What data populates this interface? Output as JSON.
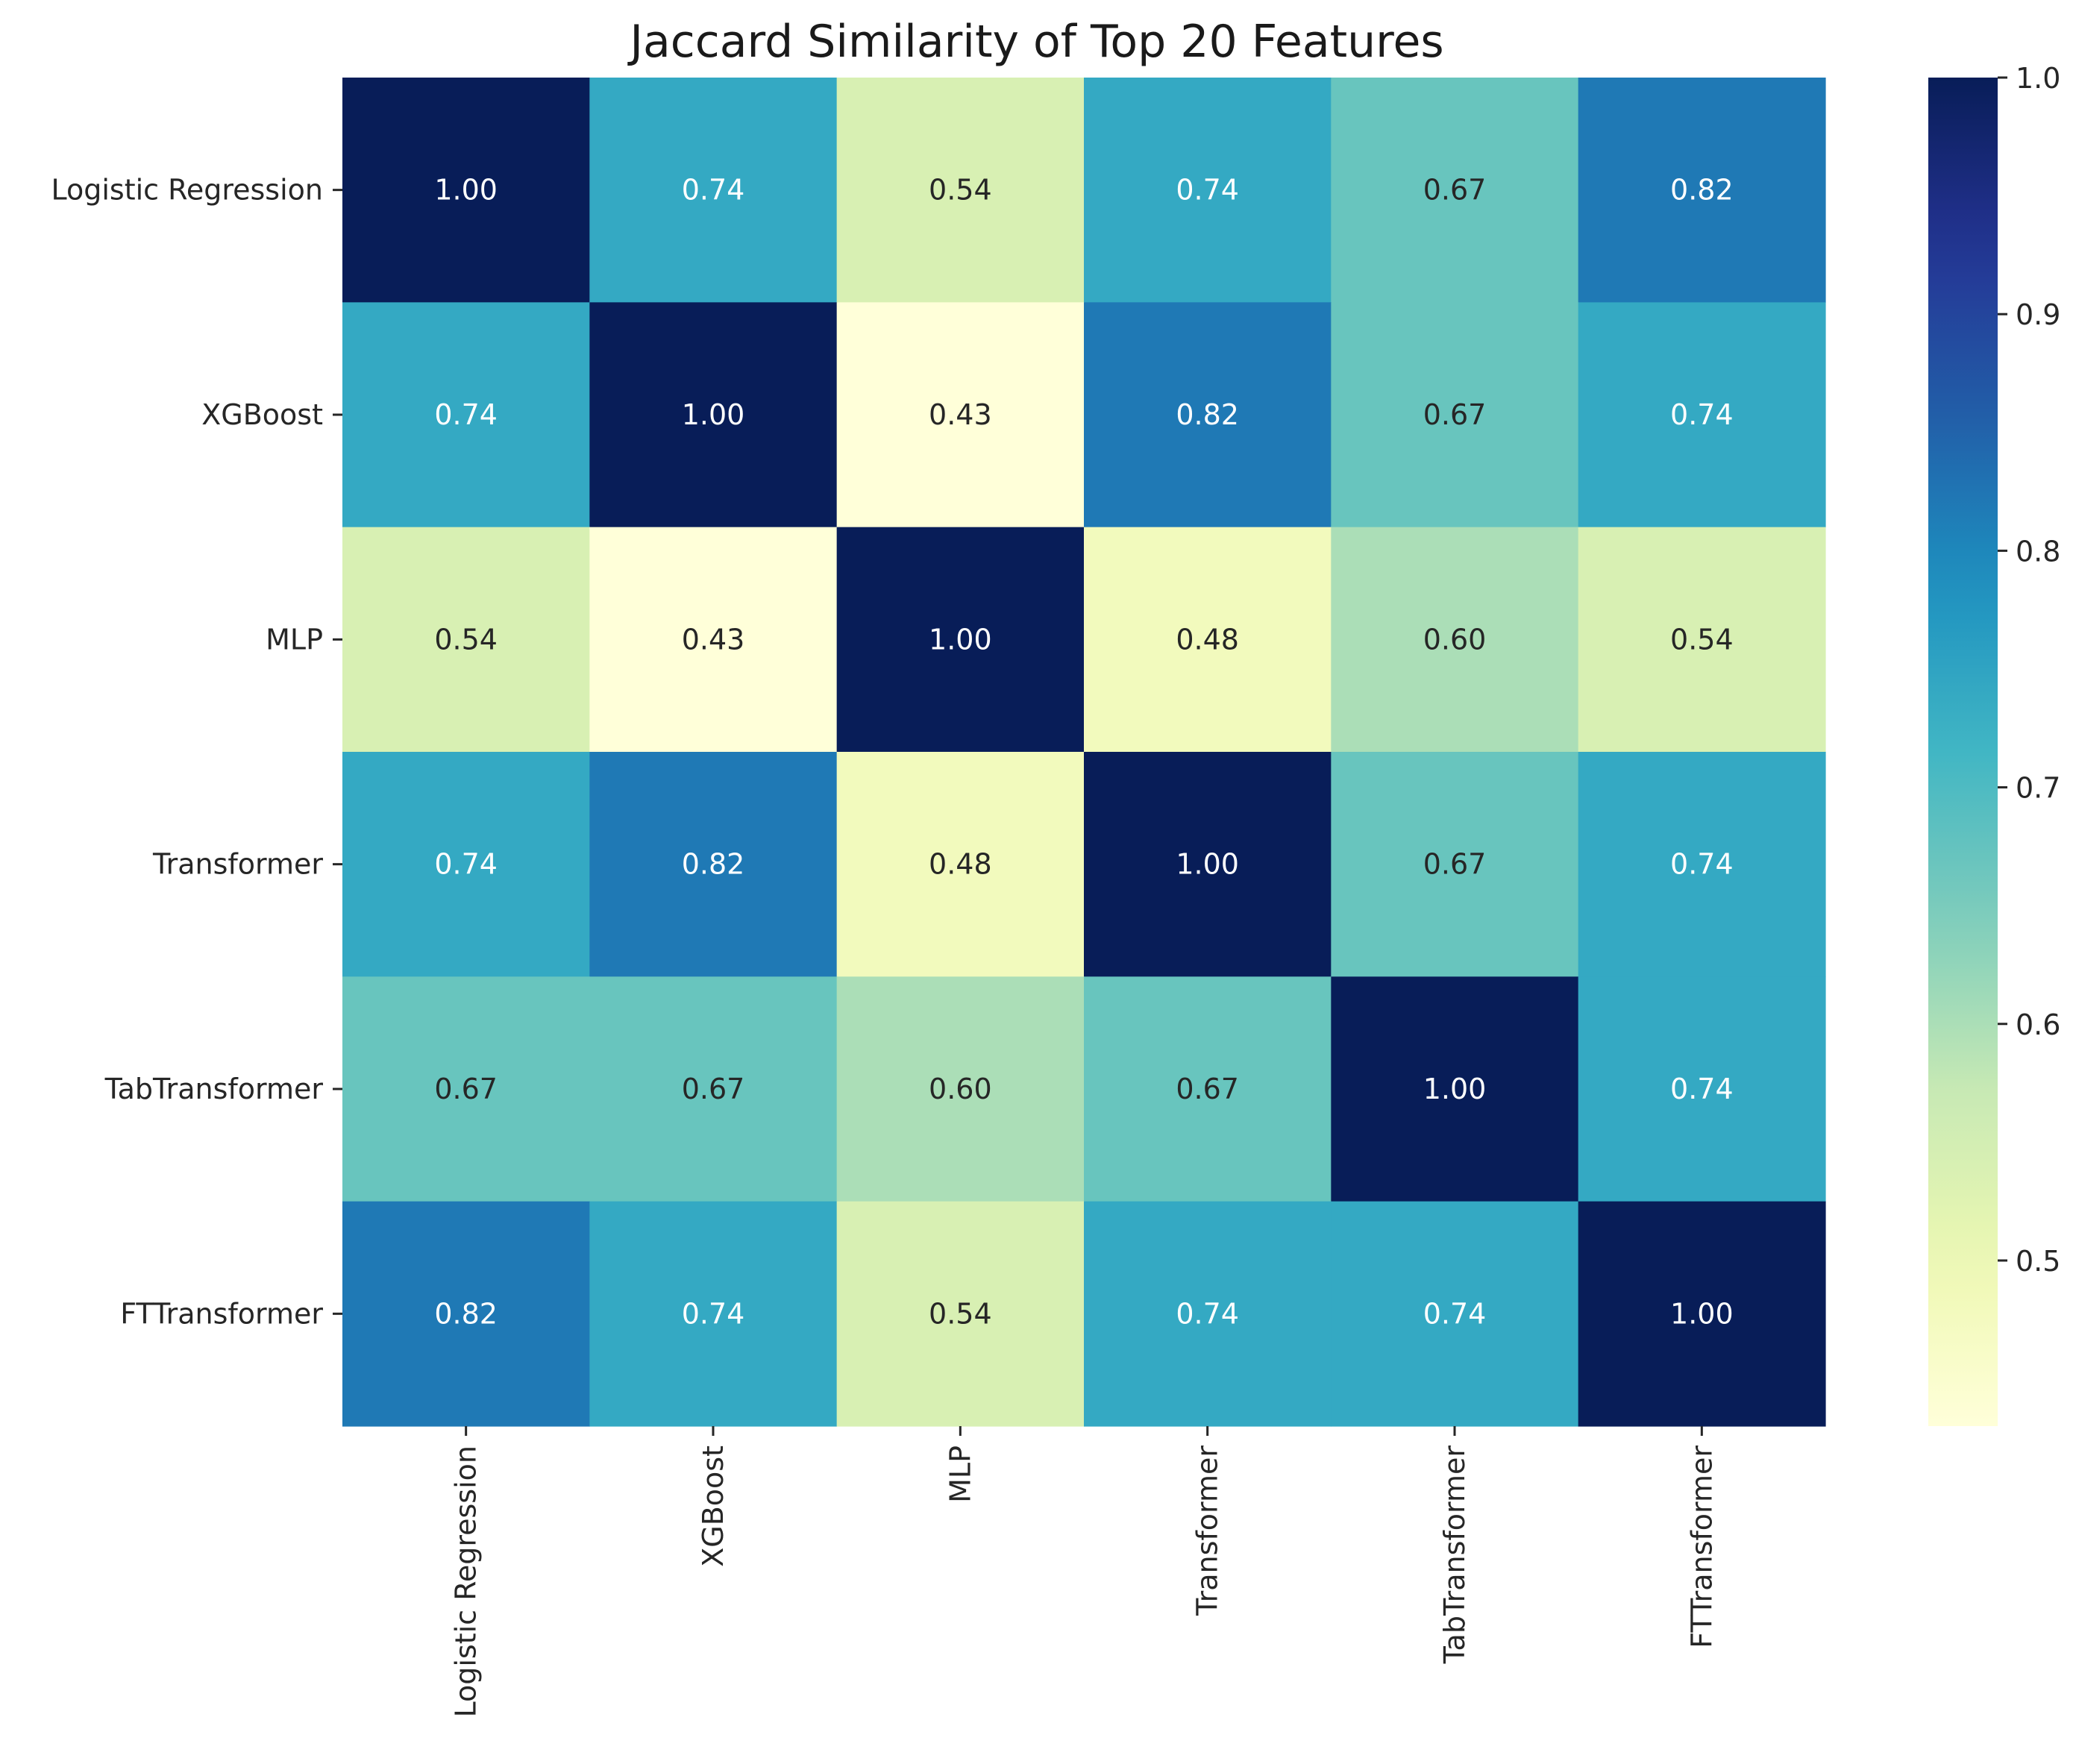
{
  "chart_data": {
    "type": "heatmap",
    "title": "Jaccard Similarity of Top 20 Features",
    "xlabel": "",
    "ylabel": "",
    "row_labels": [
      "Logistic Regression",
      "XGBoost",
      "MLP",
      "Transformer",
      "TabTransformer",
      "FTTransformer"
    ],
    "col_labels": [
      "Logistic Regression",
      "XGBoost",
      "MLP",
      "Transformer",
      "TabTransformer",
      "FTTransformer"
    ],
    "values": [
      [
        1.0,
        0.74,
        0.54,
        0.74,
        0.67,
        0.82
      ],
      [
        0.74,
        1.0,
        0.43,
        0.82,
        0.67,
        0.74
      ],
      [
        0.54,
        0.43,
        1.0,
        0.48,
        0.6,
        0.54
      ],
      [
        0.74,
        0.82,
        0.48,
        1.0,
        0.67,
        0.74
      ],
      [
        0.67,
        0.67,
        0.6,
        0.67,
        1.0,
        0.74
      ],
      [
        0.82,
        0.74,
        0.54,
        0.74,
        0.74,
        1.0
      ]
    ],
    "value_format": "0.00",
    "colormap": "YlGnBu",
    "vmin": 0.43,
    "vmax": 1.0,
    "colorbar_ticks": [
      "0.5",
      "0.6",
      "0.7",
      "0.8",
      "0.9",
      "1.0"
    ],
    "grid": false,
    "legend": "colorbar-right"
  }
}
